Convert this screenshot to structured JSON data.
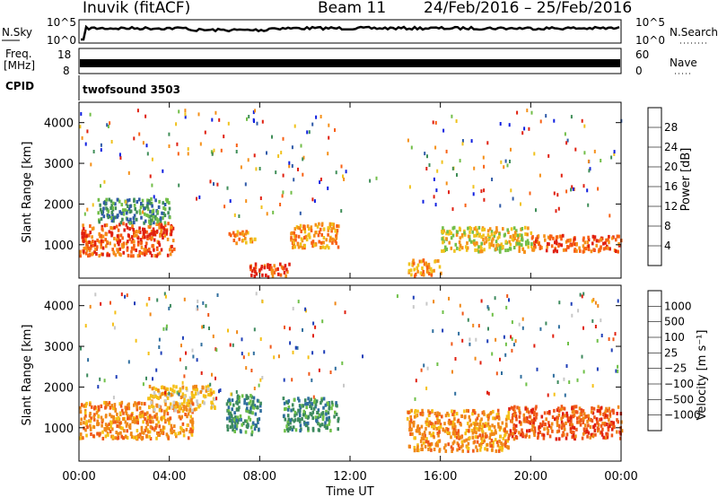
{
  "chart_data": {
    "type": "heatmap",
    "title": {
      "station": "Inuvik (fitACF)",
      "beam": "Beam 11",
      "date_range": "24/Feb/2016 – 25/Feb/2016"
    },
    "x_axis": {
      "label": "Time UT",
      "ticks": [
        "00:00",
        "04:00",
        "08:00",
        "12:00",
        "16:00",
        "20:00",
        "00:00"
      ],
      "range_hours": [
        0,
        24
      ]
    },
    "top_panels": {
      "nsky": {
        "left_label": "N.Sky",
        "right_label": "N.Search",
        "left_ticks": [
          "10^5",
          "10^0"
        ],
        "right_ticks": [
          "10^5",
          "10^0"
        ]
      },
      "freq": {
        "left_label_line1": "Freq.",
        "left_label_line2": "[MHz]",
        "right_label": "Nave",
        "left_ticks": [
          "18",
          "8"
        ],
        "right_ticks": [
          "60",
          "0"
        ]
      },
      "cpid": {
        "label": "CPID",
        "program": "twofsound 3503"
      }
    },
    "panels": [
      {
        "name": "power",
        "ylabel": "Slant Range [km]",
        "y_ticks": [
          1000,
          2000,
          3000,
          4000
        ],
        "y_range_km": [
          180,
          4500
        ],
        "colorbar_label": "Power [dB]",
        "colorbar_ticks": [
          "4",
          "8",
          "12",
          "16",
          "20",
          "24",
          "28"
        ],
        "colorbar_colors": [
          "#1020e0",
          "#2f5aa8",
          "#3f8e58",
          "#72be48",
          "#f0c21c",
          "#f59018",
          "#f86014",
          "#e02010"
        ],
        "echo_regions": [
          {
            "t0": 0.0,
            "t1": 4.2,
            "r0": 700,
            "r1": 1500,
            "level_db": 26
          },
          {
            "t0": 0.8,
            "t1": 4.0,
            "r0": 1500,
            "r1": 2100,
            "level_db": 12
          },
          {
            "t0": 6.6,
            "t1": 7.8,
            "r0": 1000,
            "r1": 1300,
            "level_db": 24
          },
          {
            "t0": 7.5,
            "t1": 9.3,
            "r0": 180,
            "r1": 500,
            "level_db": 28
          },
          {
            "t0": 9.3,
            "t1": 11.5,
            "r0": 900,
            "r1": 1500,
            "level_db": 22
          },
          {
            "t0": 14.5,
            "t1": 16.0,
            "r0": 200,
            "r1": 600,
            "level_db": 24
          },
          {
            "t0": 16.0,
            "t1": 20.0,
            "r0": 800,
            "r1": 1400,
            "level_db": 18
          },
          {
            "t0": 20.0,
            "t1": 24.0,
            "r0": 800,
            "r1": 1200,
            "level_db": 28
          }
        ]
      },
      {
        "name": "velocity",
        "ylabel": "Slant Range [km]",
        "y_ticks": [
          1000,
          2000,
          3000,
          4000
        ],
        "y_range_km": [
          180,
          4500
        ],
        "colorbar_label": "Velocity [m s⁻¹]",
        "colorbar_ticks": [
          "1000",
          "500",
          "100",
          "25",
          "−25",
          "−100",
          "−500",
          "−1000"
        ],
        "colorbar_colors": [
          "#1f3fb8",
          "#2f6e9e",
          "#3d8a5e",
          "#6fc048",
          "#c8c8c8",
          "#f5c016",
          "#f08818",
          "#f05818",
          "#e02010"
        ],
        "echo_regions": [
          {
            "t0": 0.0,
            "t1": 5.0,
            "r0": 700,
            "r1": 1600,
            "level_ms": -400
          },
          {
            "t0": 3.0,
            "t1": 6.0,
            "r0": 1400,
            "r1": 2000,
            "level_ms": -100
          },
          {
            "t0": 6.5,
            "t1": 8.0,
            "r0": 800,
            "r1": 1800,
            "level_ms": 300
          },
          {
            "t0": 9.0,
            "t1": 11.5,
            "r0": 900,
            "r1": 1700,
            "level_ms": 300
          },
          {
            "t0": 14.5,
            "t1": 19.0,
            "r0": 400,
            "r1": 1400,
            "level_ms": -300
          },
          {
            "t0": 19.0,
            "t1": 24.0,
            "r0": 700,
            "r1": 1500,
            "level_ms": -600
          }
        ]
      }
    ]
  }
}
